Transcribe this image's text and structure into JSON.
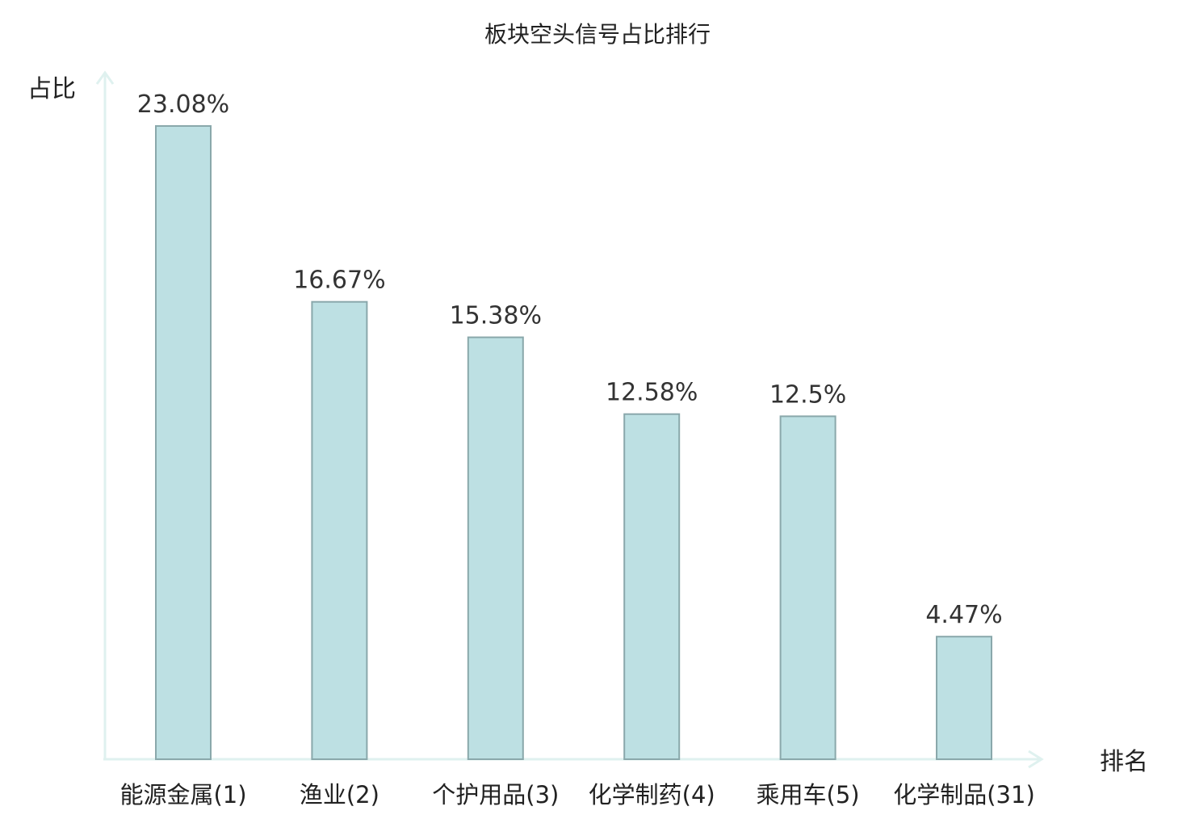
{
  "chart_data": {
    "type": "bar",
    "title": "板块空头信号占比排行",
    "xlabel": "排名",
    "ylabel": "占比",
    "categories": [
      "能源金属(1)",
      "渔业(2)",
      "个护用品(3)",
      "化学制药(4)",
      "乘用车(5)",
      "化学制品(31)"
    ],
    "values": [
      23.08,
      16.67,
      15.38,
      12.58,
      12.5,
      4.47
    ],
    "value_labels": [
      "23.08%",
      "16.67%",
      "15.38%",
      "12.58%",
      "12.5%",
      "4.47%"
    ],
    "highlight_index": 5,
    "ylim": [
      0,
      25
    ],
    "grid": false,
    "legend": "none"
  },
  "colors": {
    "bar_fill": "#bde0e3",
    "bar_stroke": "#8aa8ab",
    "axis": "#dff1ef",
    "highlight_text": "#e8191a",
    "text": "#222222"
  }
}
